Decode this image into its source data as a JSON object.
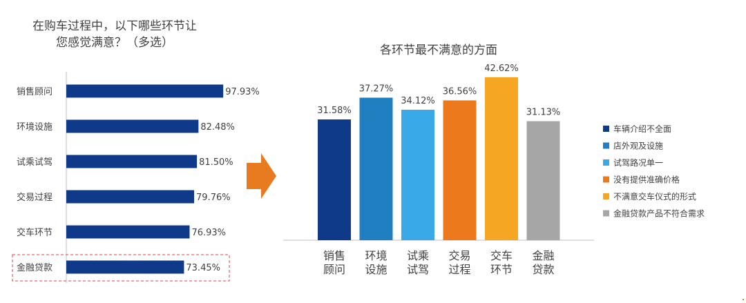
{
  "left_title_line1": "在购车过程中，以下哪些环节让",
  "left_title_line2": "您感觉满意？（多选）",
  "right_title": "各环节最不满意的方面",
  "colors": {
    "left_bar": "#0f3a8a",
    "highlight_box": "#e0404a",
    "arrow": "#e87a1f",
    "axis": "#bfbfbf",
    "text": "#404040"
  },
  "chart_data": [
    {
      "type": "bar",
      "orientation": "horizontal",
      "title": "在购车过程中，以下哪些环节让您感觉满意？（多选）",
      "categories": [
        "销售顾问",
        "环境设施",
        "试乘试驾",
        "交易过程",
        "交车环节",
        "金融贷款"
      ],
      "values": [
        97.93,
        82.48,
        81.5,
        79.76,
        76.93,
        73.45
      ],
      "value_labels": [
        "97.93%",
        "82.48%",
        "81.50%",
        "79.76%",
        "76.93%",
        "73.45%"
      ],
      "highlighted_category": "金融贷款",
      "xlim": [
        0,
        100
      ]
    },
    {
      "type": "bar",
      "title": "各环节最不满意的方面",
      "categories": [
        [
          "销售",
          "顾问"
        ],
        [
          "环境",
          "设施"
        ],
        [
          "试乘",
          "试驾"
        ],
        [
          "交易",
          "过程"
        ],
        [
          "交车",
          "环节"
        ],
        [
          "金融",
          "贷款"
        ]
      ],
      "values": [
        31.58,
        37.27,
        34.12,
        36.56,
        42.62,
        31.13
      ],
      "value_labels": [
        "31.58%",
        "37.27%",
        "34.12%",
        "36.56%",
        "42.62%",
        "31.13%"
      ],
      "colors": [
        "#0f3a8a",
        "#1f7fc0",
        "#3aa9e8",
        "#ec7a1c",
        "#f5a623",
        "#a6a6a6"
      ],
      "legend": [
        "车辆介绍不全面",
        "店外观及设施",
        "试驾路况单一",
        "没有提供准确价格",
        "不满意交车仪式的形式",
        "金融贷款产品不符合需求"
      ],
      "legend_position": "right",
      "ylim": [
        0,
        50
      ]
    }
  ]
}
